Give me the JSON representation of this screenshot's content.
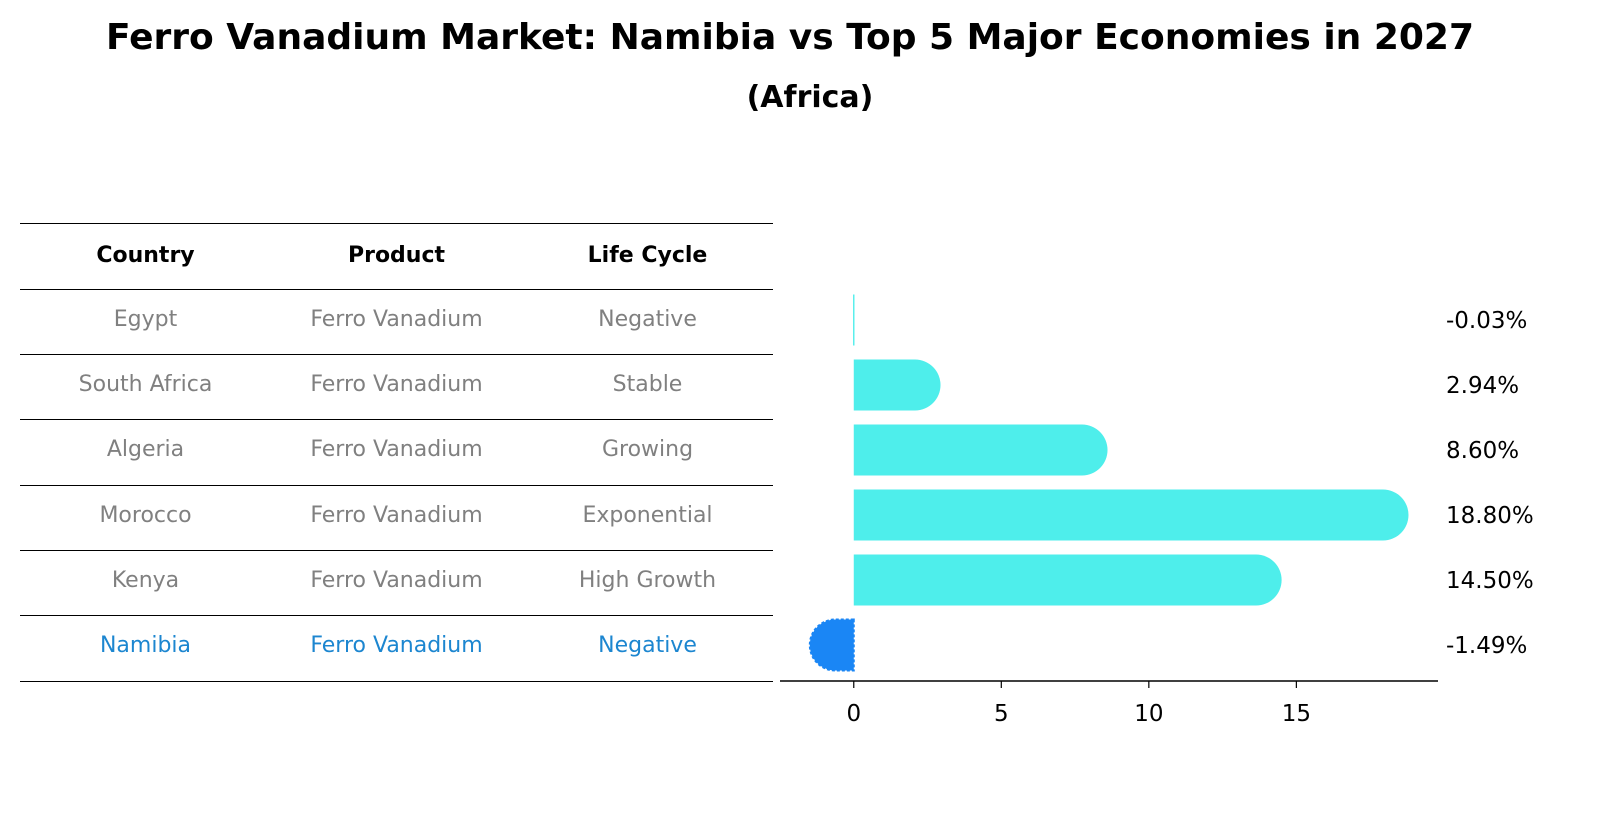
{
  "header": {
    "title": "Ferro Vanadium Market: Namibia vs Top 5 Major Economies in 2027",
    "subtitle": "(Africa)"
  },
  "table": {
    "columns": [
      "Country",
      "Product",
      "Life Cycle"
    ],
    "rows": [
      [
        "Egypt",
        "Ferro Vanadium",
        "Negative"
      ],
      [
        "South Africa",
        "Ferro Vanadium",
        "Stable"
      ],
      [
        "Algeria",
        "Ferro Vanadium",
        "Growing"
      ],
      [
        "Morocco",
        "Ferro Vanadium",
        "Exponential"
      ],
      [
        "Kenya",
        "Ferro Vanadium",
        "High Growth"
      ],
      [
        "Namibia",
        "Ferro Vanadium",
        "Negative"
      ]
    ],
    "highlight_row": 5
  },
  "chart_data": {
    "type": "bar",
    "orientation": "horizontal",
    "categories": [
      "Egypt",
      "South Africa",
      "Algeria",
      "Morocco",
      "Kenya",
      "Namibia"
    ],
    "values": [
      -0.03,
      2.94,
      8.6,
      18.8,
      14.5,
      -1.49
    ],
    "value_labels": [
      "-0.03%",
      "2.94%",
      "8.60%",
      "18.80%",
      "14.50%",
      "-1.49%"
    ],
    "xticks": [
      0,
      5,
      10,
      15
    ],
    "xlim": [
      -2.5,
      19.8
    ],
    "highlight_index": 5,
    "colors": {
      "bar": "#4eeeeb",
      "highlight_bar": "#1a86f5",
      "highlight_text": "#1c86d0",
      "muted_text": "#808080"
    }
  }
}
